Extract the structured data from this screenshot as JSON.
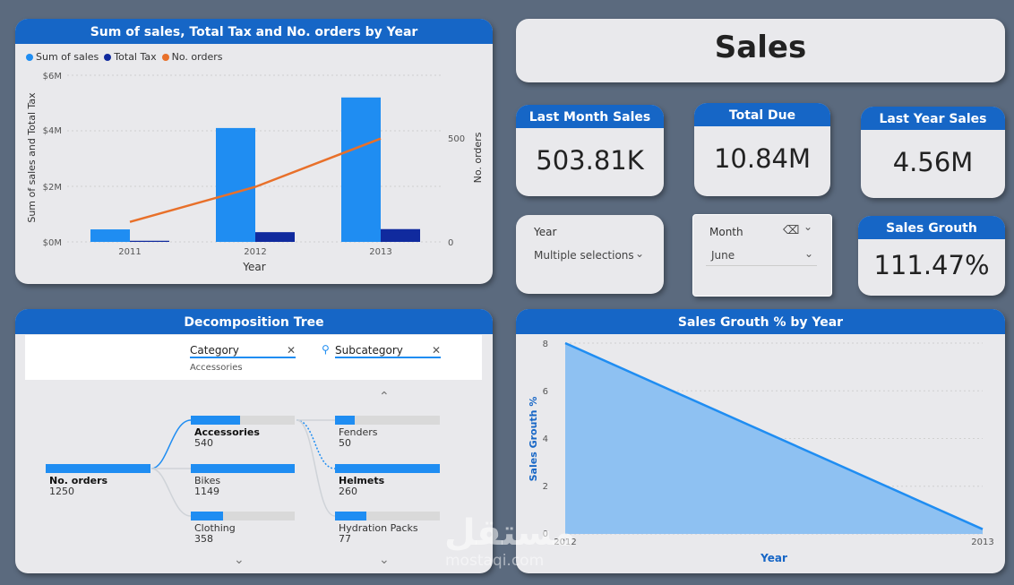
{
  "colors": {
    "header": "#1666c6",
    "sales": "#1f8df2",
    "tax": "#102a9e",
    "orders": "#e8702a",
    "area": "#8ec1f2",
    "line": "#1f8df2"
  },
  "title_card": {
    "text": "Sales"
  },
  "kpis": {
    "last_month": {
      "label": "Last Month Sales",
      "value": "503.81K"
    },
    "total_due": {
      "label": "Total Due",
      "value": "10.84M"
    },
    "last_year": {
      "label": "Last Year Sales",
      "value": "4.56M"
    },
    "growth": {
      "label": "Sales Grouth",
      "value": "111.47%"
    }
  },
  "slicers": {
    "year": {
      "label": "Year",
      "value": "Multiple selections"
    },
    "month": {
      "label": "Month",
      "value": "June"
    }
  },
  "combo": {
    "title": "Sum of sales, Total Tax and No. orders by Year",
    "legend": [
      "Sum of sales",
      "Total Tax",
      "No. orders"
    ],
    "y_left_label": "Sum of sales and Total Tax",
    "y_right_label": "No. orders",
    "x_label": "Year",
    "y_left_ticks": [
      "$6M",
      "$4M",
      "$2M",
      "$0M"
    ],
    "y_right_ticks": [
      "500",
      "0"
    ]
  },
  "decomp": {
    "title": "Decomposition Tree",
    "filter1": {
      "label": "Category",
      "value": "Accessories"
    },
    "filter2": {
      "label": "Subcategory"
    },
    "root": {
      "name": "No. orders",
      "value": "1250",
      "frac": 1.0
    },
    "level1": [
      {
        "name": "Accessories",
        "value": "540",
        "frac": 0.47
      },
      {
        "name": "Bikes",
        "value": "1149",
        "frac": 1.0
      },
      {
        "name": "Clothing",
        "value": "358",
        "frac": 0.31
      }
    ],
    "level2": [
      {
        "name": "Fenders",
        "value": "50",
        "frac": 0.19
      },
      {
        "name": "Helmets",
        "value": "260",
        "frac": 1.0
      },
      {
        "name": "Hydration Packs",
        "value": "77",
        "frac": 0.3
      }
    ]
  },
  "area": {
    "title": "Sales Grouth % by Year",
    "y_label": "Sales Grouth %",
    "x_label": "Year",
    "y_ticks": [
      "8",
      "6",
      "4",
      "2",
      "0"
    ],
    "x_ticks": [
      "2012",
      "2013"
    ]
  },
  "watermark": {
    "text": "مستقل",
    "sub": "mostaqi.com"
  },
  "chart_data": [
    {
      "type": "bar",
      "title": "Sum of sales, Total Tax and No. orders by Year",
      "categories": [
        "2011",
        "2012",
        "2013"
      ],
      "series": [
        {
          "name": "Sum of sales",
          "values": [
            0.45,
            4.1,
            5.2
          ]
        },
        {
          "name": "Total Tax",
          "values": [
            0.04,
            0.35,
            0.46
          ]
        }
      ],
      "line_series": {
        "name": "No. orders",
        "values": [
          120,
          330,
          620
        ]
      },
      "xlabel": "Year",
      "ylabel": "Sum of sales and Total Tax",
      "ylim": [
        0,
        6
      ],
      "y2label": "No. orders",
      "y2lim": [
        0,
        1000
      ]
    },
    {
      "type": "area",
      "title": "Sales Grouth % by Year",
      "x": [
        "2012",
        "2013"
      ],
      "values": [
        8,
        0.2
      ],
      "xlabel": "Year",
      "ylabel": "Sales Grouth %",
      "ylim": [
        0,
        8
      ]
    }
  ]
}
